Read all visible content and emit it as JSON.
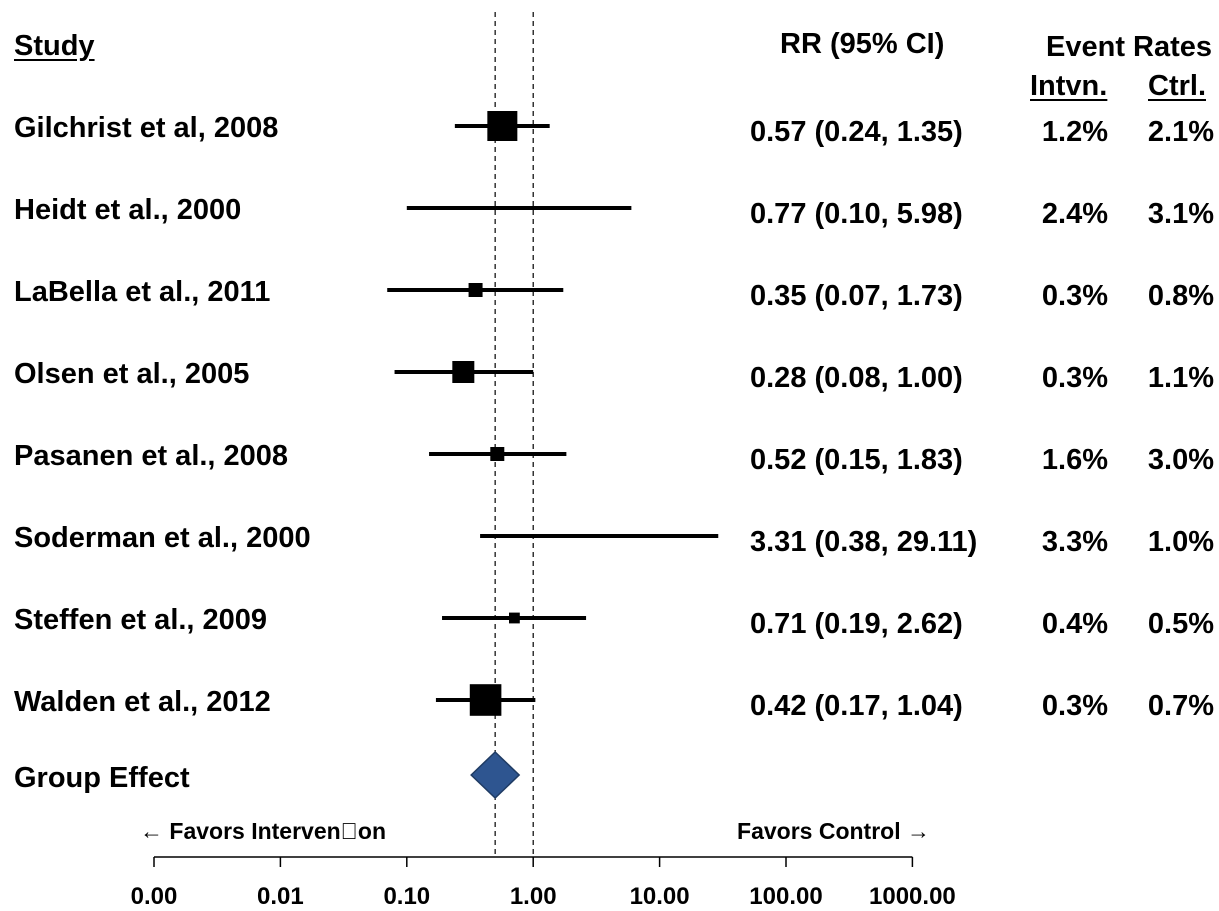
{
  "chart_data": {
    "type": "forest",
    "headers": {
      "study": "Study",
      "rr": "RR (95% CI)",
      "event_rates": "Event Rates",
      "intervention": "Intvn.",
      "control": "Ctrl."
    },
    "x_scale": "log",
    "x_ticks": [
      0.001,
      0.01,
      0.1,
      1,
      10,
      100,
      1000
    ],
    "x_tick_labels": [
      "0.00",
      "0.01",
      "0.10",
      "1.00",
      "10.00",
      "100.00",
      "1000.00"
    ],
    "xlim": [
      0.001,
      1000
    ],
    "reference_lines": [
      0.5,
      1
    ],
    "favors_left": "← Favors Interven\u0000on",
    "favors_right": "Favors Control →",
    "studies": [
      {
        "name": "Gilchrist et al, 2008",
        "rr": 0.57,
        "lo": 0.24,
        "hi": 1.35,
        "weight": 3,
        "rr_text": "0.57 (0.24, 1.35)",
        "intervention": "1.2%",
        "control": "2.1%"
      },
      {
        "name": "Heidt et al., 2000",
        "rr": 0.77,
        "lo": 0.1,
        "hi": 5.98,
        "weight": 0,
        "rr_text": "0.77 (0.10, 5.98)",
        "intervention": "2.4%",
        "control": "3.1%"
      },
      {
        "name": "LaBella et al., 2011",
        "rr": 0.35,
        "lo": 0.07,
        "hi": 1.73,
        "weight": 1,
        "rr_text": "0.35 (0.07, 1.73)",
        "intervention": "0.3%",
        "control": "0.8%"
      },
      {
        "name": "Olsen et al., 2005",
        "rr": 0.28,
        "lo": 0.08,
        "hi": 1.0,
        "weight": 2,
        "rr_text": "0.28 (0.08, 1.00)",
        "intervention": "0.3%",
        "control": "1.1%"
      },
      {
        "name": "Pasanen et al., 2008",
        "rr": 0.52,
        "lo": 0.15,
        "hi": 1.83,
        "weight": 1,
        "rr_text": "0.52 (0.15, 1.83)",
        "intervention": "1.6%",
        "control": "3.0%"
      },
      {
        "name": "Soderman et al., 2000",
        "rr": 3.31,
        "lo": 0.38,
        "hi": 29.11,
        "weight": 0,
        "rr_text": "3.31 (0.38, 29.11)",
        "intervention": "3.3%",
        "control": "1.0%"
      },
      {
        "name": "Steffen et al., 2009",
        "rr": 0.71,
        "lo": 0.19,
        "hi": 2.62,
        "weight": 0.6,
        "rr_text": "0.71 (0.19, 2.62)",
        "intervention": "0.4%",
        "control": "0.5%"
      },
      {
        "name": "Walden et al., 2012",
        "rr": 0.42,
        "lo": 0.17,
        "hi": 1.04,
        "weight": 3.2,
        "rr_text": "0.42 (0.17, 1.04)",
        "intervention": "0.3%",
        "control": "0.7%"
      }
    ],
    "pooled": {
      "name": "Group Effect",
      "rr": 0.5,
      "lo": 0.37,
      "hi": 0.72
    },
    "colors": {
      "diamond_fill": "#2e5590",
      "diamond_stroke": "#1f3b63",
      "marks": "#000000"
    }
  }
}
